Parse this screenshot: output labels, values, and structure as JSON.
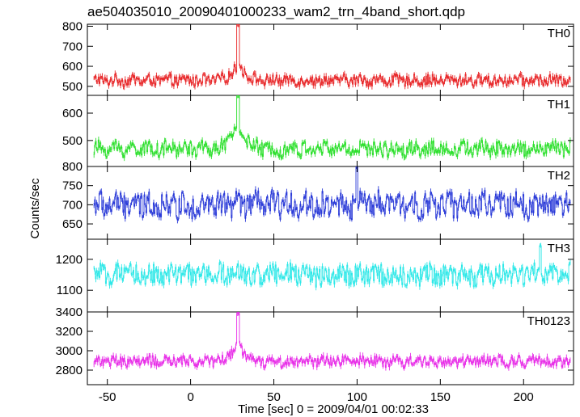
{
  "title": "ae504035010_20090401000233_wam2_trn_4band_short.qdp",
  "x_axis": {
    "label": "Time [sec] 0 = 2009/04/01 00:02:33",
    "range": [
      -62,
      230
    ],
    "ticks": [
      -50,
      0,
      50,
      100,
      150,
      200
    ]
  },
  "y_axis": {
    "label": "Counts/sec"
  },
  "chart_data": [
    {
      "type": "line",
      "panel": "TH0",
      "color": "#e8282a",
      "ylim": [
        455,
        810
      ],
      "yticks": [
        500,
        600,
        700,
        800
      ],
      "series": [
        {
          "name": "TH0",
          "baseline": 530,
          "noise": 45,
          "spike_x": 28.5,
          "spike_peak": 810,
          "bump": 60,
          "x_start": -58,
          "x_end": 228
        }
      ]
    },
    {
      "type": "line",
      "panel": "TH1",
      "color": "#2ee02e",
      "ylim": [
        405,
        665
      ],
      "yticks": [
        500,
        600
      ],
      "series": [
        {
          "name": "TH1",
          "baseline": 470,
          "noise": 45,
          "spike_x": 28.5,
          "spike_peak": 665,
          "bump": 70,
          "x_start": -58,
          "x_end": 228
        }
      ]
    },
    {
      "type": "line",
      "panel": "TH2",
      "color": "#2b3bd8",
      "ylim": [
        610,
        800
      ],
      "yticks": [
        650,
        700,
        750,
        800
      ],
      "series": [
        {
          "name": "TH2",
          "baseline": 700,
          "noise": 55,
          "spike_x": 100,
          "spike_peak": 800,
          "bump": 0,
          "x_start": -58,
          "x_end": 228
        }
      ]
    },
    {
      "type": "line",
      "panel": "TH3",
      "color": "#2ee8e8",
      "ylim": [
        1030,
        1265
      ],
      "yticks": [
        1100,
        1200
      ],
      "series": [
        {
          "name": "TH3",
          "baseline": 1150,
          "noise": 55,
          "spike_x": 210,
          "spike_peak": 1245,
          "bump": 0,
          "x_start": -58,
          "x_end": 228
        }
      ]
    },
    {
      "type": "line",
      "panel": "TH0123",
      "color": "#e830e8",
      "ylim": [
        2650,
        3400
      ],
      "yticks": [
        2800,
        3000,
        3200,
        3400
      ],
      "series": [
        {
          "name": "TH0123",
          "baseline": 2890,
          "noise": 90,
          "spike_x": 28.5,
          "spike_peak": 3390,
          "bump": 140,
          "x_start": -58,
          "x_end": 228
        }
      ]
    }
  ]
}
